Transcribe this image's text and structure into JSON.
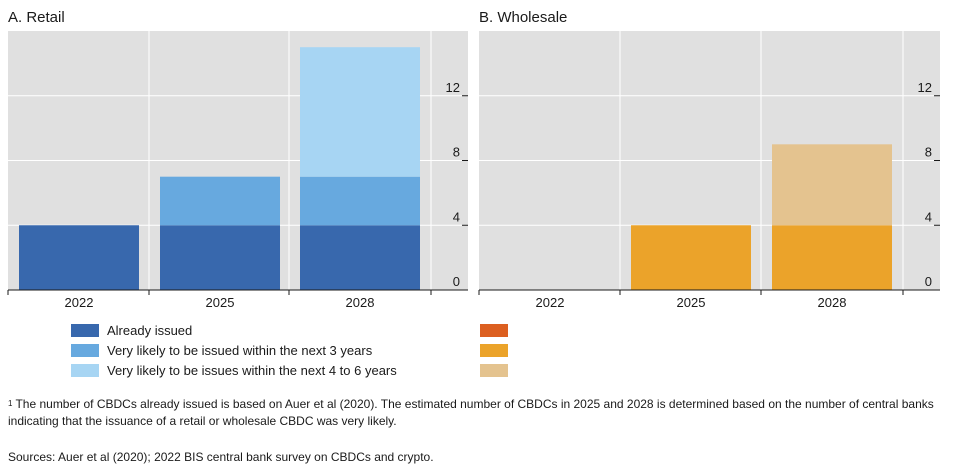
{
  "colors": {
    "plot_bg": "#e0e0e0",
    "grid": "#ffffff",
    "retail_stack": [
      "#3868ad",
      "#67a9df",
      "#a7d5f3"
    ],
    "wholesale_stack": [
      "#dc5f20",
      "#eba32a",
      "#e4c38f"
    ]
  },
  "chart_data": [
    {
      "type": "bar",
      "stacked": true,
      "title": "A. Retail",
      "categories": [
        "2022",
        "2025",
        "2028"
      ],
      "series": [
        {
          "name": "Already issued",
          "values": [
            4,
            4,
            4
          ]
        },
        {
          "name": "Very likely to be issued within the next 3 years",
          "values": [
            0,
            3,
            3
          ]
        },
        {
          "name": "Very likely to be issues within the next 4 to 6 years",
          "values": [
            0,
            0,
            8
          ]
        }
      ],
      "yticks": [
        0,
        4,
        8,
        12
      ],
      "ylim": [
        0,
        16
      ],
      "yaxis_position": "right",
      "grid": true
    },
    {
      "type": "bar",
      "stacked": true,
      "title": "B. Wholesale",
      "categories": [
        "2022",
        "2025",
        "2028"
      ],
      "series": [
        {
          "values": [
            0,
            0,
            0
          ]
        },
        {
          "values": [
            0,
            4,
            4
          ]
        },
        {
          "values": [
            0,
            0,
            5
          ]
        }
      ],
      "yticks": [
        0,
        4,
        8,
        12
      ],
      "ylim": [
        0,
        16
      ],
      "yaxis_position": "right",
      "grid": true
    }
  ],
  "legend": {
    "items": [
      {
        "label": "Already issued"
      },
      {
        "label": "Very likely to be issued within the next 3 years"
      },
      {
        "label": "Very likely to be issues within the next 4 to 6 years"
      }
    ]
  },
  "footnotes": {
    "note_marker": "1",
    "note_text": "The number of CBDCs already issued is based on Auer et al (2020). The estimated number of CBDCs in 2025 and 2028 is determined based on the number of central banks indicating that the issuance of a retail or wholesale CBDC was very likely.",
    "sources": "Sources: Auer et al (2020); 2022 BIS central bank survey on CBDCs and crypto."
  }
}
